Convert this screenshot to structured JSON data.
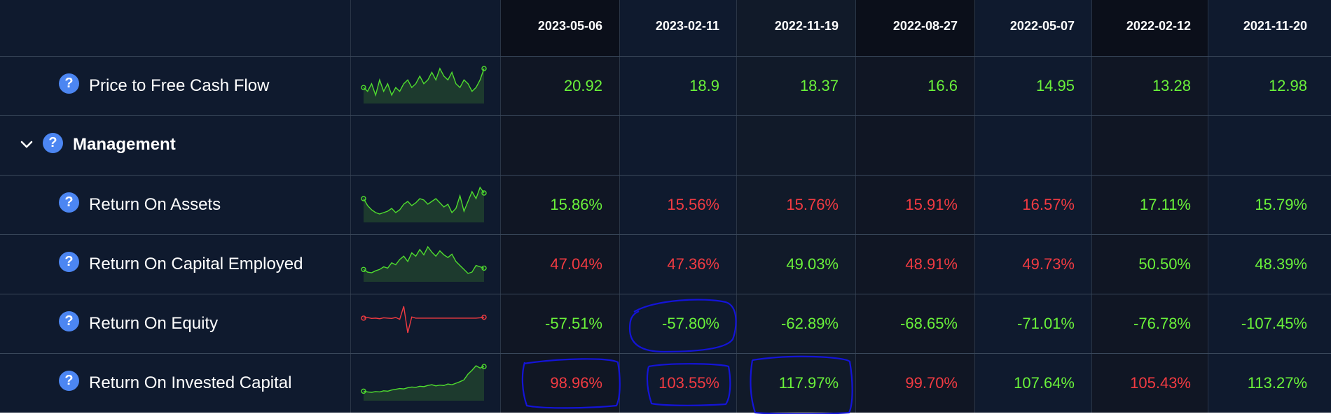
{
  "columns": [
    "2023-05-06",
    "2023-02-11",
    "2022-11-19",
    "2022-08-27",
    "2022-05-07",
    "2022-02-12",
    "2021-11-20"
  ],
  "colors": {
    "positive": "#6af23a",
    "negative": "#f23b42",
    "help_icon": "#4c86f2",
    "annotation": "#1414d8"
  },
  "help_glyph": "?",
  "rows": [
    {
      "label": "Price to Free Cash Flow",
      "icon": "help-circle-icon",
      "sparkline": {
        "trend": "green",
        "values": [
          4,
          3,
          5,
          2,
          6,
          3,
          5,
          2,
          4,
          3,
          5,
          6,
          4,
          5,
          7,
          5,
          6,
          8,
          6,
          9,
          7,
          6,
          8,
          5,
          4,
          6,
          5,
          3,
          4,
          6,
          9
        ]
      },
      "values": [
        {
          "text": "20.92",
          "sign": "pos"
        },
        {
          "text": "18.9",
          "sign": "pos"
        },
        {
          "text": "18.37",
          "sign": "pos"
        },
        {
          "text": "16.6",
          "sign": "pos"
        },
        {
          "text": "14.95",
          "sign": "pos"
        },
        {
          "text": "13.28",
          "sign": "pos"
        },
        {
          "text": "12.98",
          "sign": "pos"
        }
      ]
    },
    {
      "label": "Return On Assets",
      "icon": "help-circle-icon",
      "sparkline": {
        "trend": "green",
        "values": [
          6,
          5.5,
          5.2,
          5,
          4.9,
          5,
          5.1,
          5.3,
          5,
          5.2,
          5.6,
          5.8,
          5.5,
          5.7,
          6,
          5.9,
          5.6,
          5.8,
          6,
          5.7,
          5.4,
          5.6,
          5,
          5.3,
          6.2,
          5.1,
          5.8,
          6.5,
          6,
          6.8,
          6.4
        ]
      },
      "values": [
        {
          "text": "15.86%",
          "sign": "pos"
        },
        {
          "text": "15.56%",
          "sign": "neg"
        },
        {
          "text": "15.76%",
          "sign": "neg"
        },
        {
          "text": "15.91%",
          "sign": "neg"
        },
        {
          "text": "16.57%",
          "sign": "neg"
        },
        {
          "text": "17.11%",
          "sign": "pos"
        },
        {
          "text": "15.79%",
          "sign": "pos"
        }
      ]
    },
    {
      "label": "Return On Capital Employed",
      "icon": "help-circle-icon",
      "sparkline": {
        "trend": "green",
        "values": [
          5,
          4.6,
          4.5,
          4.8,
          5,
          5.4,
          5.2,
          6,
          5.7,
          6.5,
          7,
          6.2,
          7.5,
          7,
          8,
          7.2,
          8.4,
          7.6,
          7,
          7.8,
          7.2,
          6.8,
          7.3,
          6.2,
          5.6,
          5,
          4.4,
          4.6,
          5.6,
          5.4,
          5.2
        ]
      },
      "values": [
        {
          "text": "47.04%",
          "sign": "neg"
        },
        {
          "text": "47.36%",
          "sign": "neg"
        },
        {
          "text": "49.03%",
          "sign": "pos"
        },
        {
          "text": "48.91%",
          "sign": "neg"
        },
        {
          "text": "49.73%",
          "sign": "neg"
        },
        {
          "text": "50.50%",
          "sign": "pos"
        },
        {
          "text": "48.39%",
          "sign": "pos"
        }
      ]
    },
    {
      "label": "Return On Equity",
      "icon": "help-circle-icon",
      "sparkline": {
        "trend": "red",
        "values": [
          5,
          5.2,
          4.9,
          5,
          4.8,
          5.1,
          5,
          4.9,
          5.2,
          4.6,
          9,
          0,
          5.4,
          5,
          5,
          5,
          5,
          5,
          5,
          5,
          5,
          5,
          5,
          5,
          5,
          5,
          5,
          5,
          5,
          5.1,
          5.3
        ]
      },
      "values": [
        {
          "text": "-57.51%",
          "sign": "pos"
        },
        {
          "text": "-57.80%",
          "sign": "pos"
        },
        {
          "text": "-62.89%",
          "sign": "pos"
        },
        {
          "text": "-68.65%",
          "sign": "pos"
        },
        {
          "text": "-71.01%",
          "sign": "pos"
        },
        {
          "text": "-76.78%",
          "sign": "pos"
        },
        {
          "text": "-107.45%",
          "sign": "pos"
        }
      ]
    },
    {
      "label": "Return On Invested Capital",
      "icon": "help-circle-icon",
      "sparkline": {
        "trend": "green",
        "values": [
          1.5,
          1.3,
          1.2,
          1.4,
          1.3,
          1.6,
          1.5,
          1.8,
          2,
          2.2,
          2.1,
          2.4,
          2.6,
          2.5,
          2.8,
          2.7,
          3,
          3.2,
          2.9,
          3.1,
          3,
          3.4,
          3.2,
          3.6,
          4,
          4.5,
          6,
          7,
          8.2,
          7.6,
          8
        ]
      },
      "values": [
        {
          "text": "98.96%",
          "sign": "neg"
        },
        {
          "text": "103.55%",
          "sign": "neg"
        },
        {
          "text": "117.97%",
          "sign": "pos"
        },
        {
          "text": "99.70%",
          "sign": "neg"
        },
        {
          "text": "107.64%",
          "sign": "pos"
        },
        {
          "text": "105.43%",
          "sign": "neg"
        },
        {
          "text": "113.27%",
          "sign": "pos"
        }
      ]
    }
  ],
  "group": {
    "label": "Management",
    "expanded": true,
    "icon": "chevron-down-icon"
  }
}
